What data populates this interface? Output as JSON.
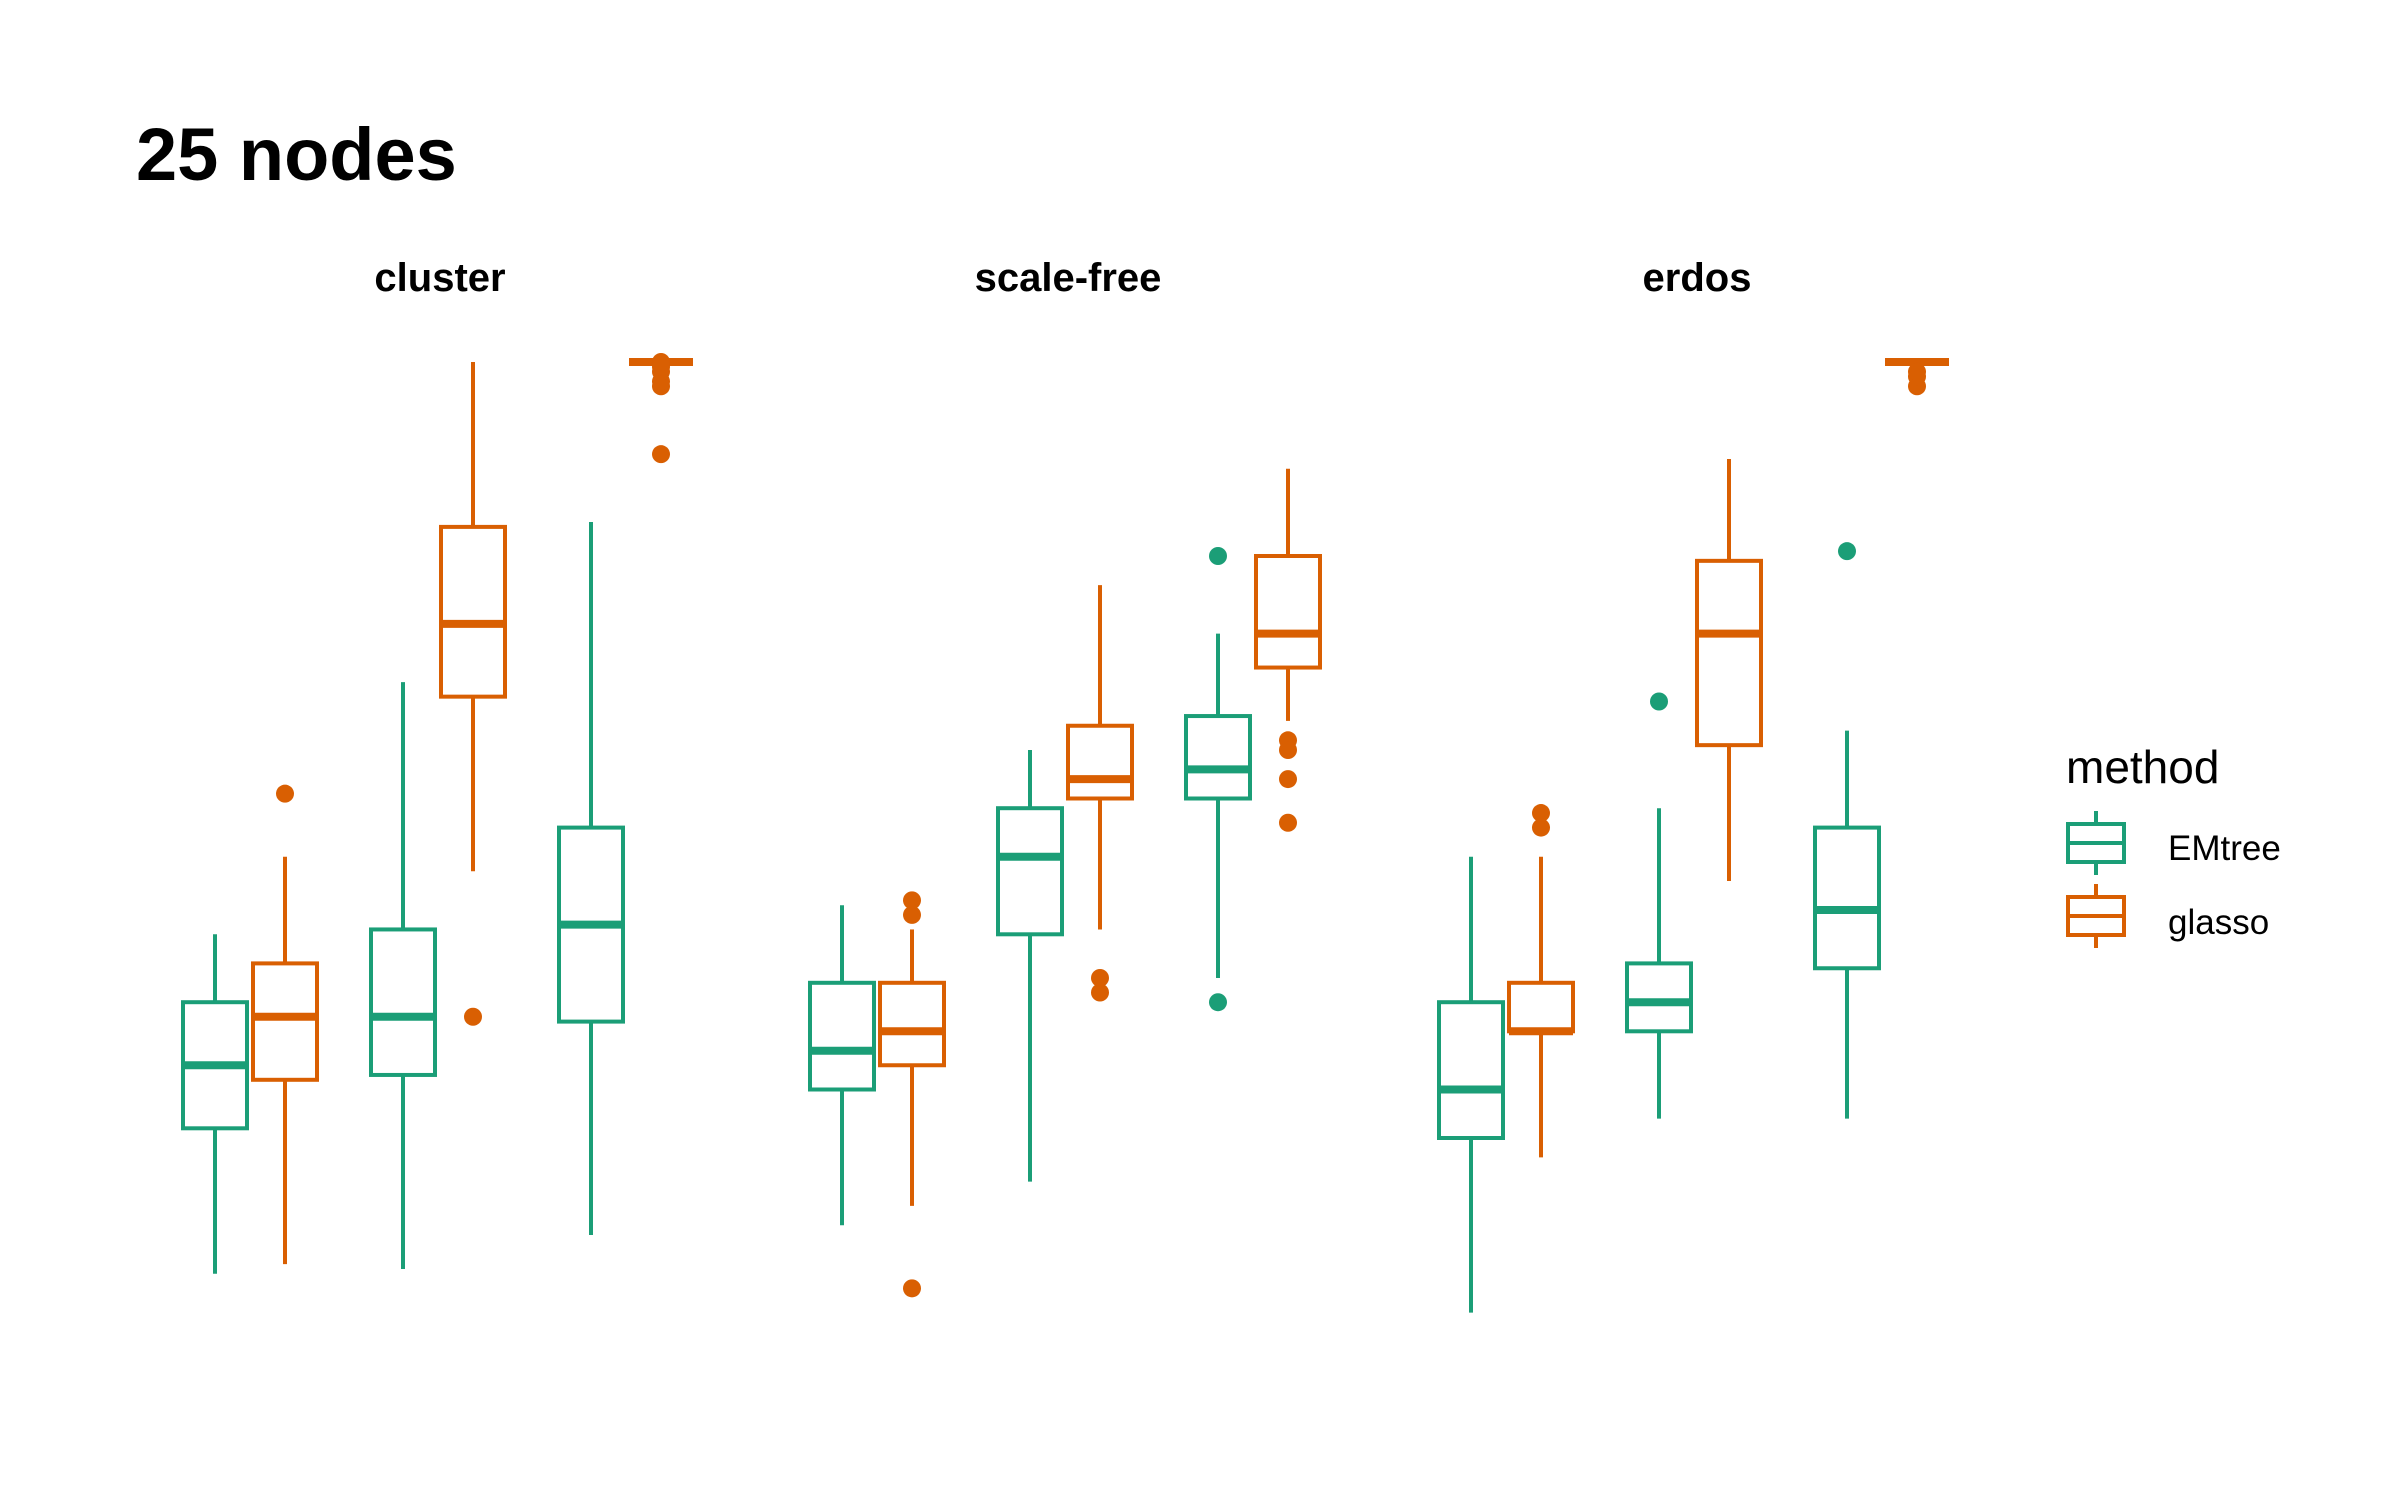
{
  "chart_data": {
    "type": "boxplot",
    "title": "25 nodes",
    "facets": [
      "cluster",
      "scale-free",
      "erdos"
    ],
    "y_scale": {
      "min": 0,
      "max": 100,
      "note": "y axis unlabeled; values in relative units"
    },
    "legend": {
      "title": "method",
      "position": "right",
      "items": [
        {
          "name": "EMtree",
          "color": "#1B9E77"
        },
        {
          "name": "glasso",
          "color": "#D95F02"
        }
      ]
    },
    "groups_per_facet": 3,
    "boxes": [
      {
        "facet": "cluster",
        "group": 1,
        "method": "EMtree",
        "low": 6,
        "q1": 21,
        "median": 27.5,
        "q3": 34,
        "high": 41,
        "outliers": []
      },
      {
        "facet": "cluster",
        "group": 1,
        "method": "glasso",
        "low": 7,
        "q1": 26,
        "median": 32.5,
        "q3": 38,
        "high": 49,
        "outliers": [
          55.5
        ]
      },
      {
        "facet": "cluster",
        "group": 2,
        "method": "EMtree",
        "low": 6.5,
        "q1": 26.5,
        "median": 32.5,
        "q3": 41.5,
        "high": 67,
        "outliers": []
      },
      {
        "facet": "cluster",
        "group": 2,
        "method": "glasso",
        "low": 47.5,
        "q1": 65.5,
        "median": 73,
        "q3": 83,
        "high": 100,
        "outliers": [
          32.5
        ]
      },
      {
        "facet": "cluster",
        "group": 3,
        "method": "EMtree",
        "low": 10,
        "q1": 32,
        "median": 42,
        "q3": 52,
        "high": 83.5,
        "outliers": []
      },
      {
        "facet": "cluster",
        "group": 3,
        "method": "glasso",
        "low": 100,
        "q1": 100,
        "median": 100,
        "q3": 100,
        "high": 100,
        "outliers": [
          97.5,
          98,
          99,
          99.5,
          100,
          90.5
        ]
      },
      {
        "facet": "scale-free",
        "group": 1,
        "method": "EMtree",
        "low": 11,
        "q1": 25,
        "median": 29,
        "q3": 36,
        "high": 44,
        "outliers": []
      },
      {
        "facet": "scale-free",
        "group": 1,
        "method": "glasso",
        "low": 13,
        "q1": 27.5,
        "median": 31,
        "q3": 36,
        "high": 41.5,
        "outliers": [
          43,
          44.5,
          4.5
        ]
      },
      {
        "facet": "scale-free",
        "group": 2,
        "method": "EMtree",
        "low": 15.5,
        "q1": 41,
        "median": 49,
        "q3": 54,
        "high": 60,
        "outliers": []
      },
      {
        "facet": "scale-free",
        "group": 2,
        "method": "glasso",
        "low": 41.5,
        "q1": 55,
        "median": 57,
        "q3": 62.5,
        "high": 77,
        "outliers": [
          35,
          36.5
        ]
      },
      {
        "facet": "scale-free",
        "group": 3,
        "method": "EMtree",
        "low": 36.5,
        "q1": 55,
        "median": 58,
        "q3": 63.5,
        "high": 72,
        "outliers": [
          80,
          34
        ]
      },
      {
        "facet": "scale-free",
        "group": 3,
        "method": "glasso",
        "low": 63,
        "q1": 68.5,
        "median": 72,
        "q3": 80,
        "high": 89,
        "outliers": [
          61,
          60,
          57,
          52.5
        ]
      },
      {
        "facet": "erdos",
        "group": 1,
        "method": "EMtree",
        "low": 2,
        "q1": 20,
        "median": 25,
        "q3": 34,
        "high": 49,
        "outliers": []
      },
      {
        "facet": "erdos",
        "group": 1,
        "method": "glasso",
        "low": 18,
        "q1": 31,
        "median": 31,
        "q3": 36,
        "high": 49,
        "outliers": [
          52,
          53.5
        ]
      },
      {
        "facet": "erdos",
        "group": 2,
        "method": "EMtree",
        "low": 22,
        "q1": 31,
        "median": 34,
        "q3": 38,
        "high": 54,
        "outliers": [
          65
        ]
      },
      {
        "facet": "erdos",
        "group": 2,
        "method": "glasso",
        "low": 46.5,
        "q1": 60.5,
        "median": 72,
        "q3": 79.5,
        "high": 90,
        "outliers": []
      },
      {
        "facet": "erdos",
        "group": 3,
        "method": "EMtree",
        "low": 22,
        "q1": 37.5,
        "median": 43.5,
        "q3": 52,
        "high": 62,
        "outliers": [
          80.5
        ]
      },
      {
        "facet": "erdos",
        "group": 3,
        "method": "glasso",
        "low": 100,
        "q1": 100,
        "median": 100,
        "q3": 100,
        "high": 100,
        "outliers": [
          97.5,
          98.5,
          99
        ]
      }
    ]
  }
}
